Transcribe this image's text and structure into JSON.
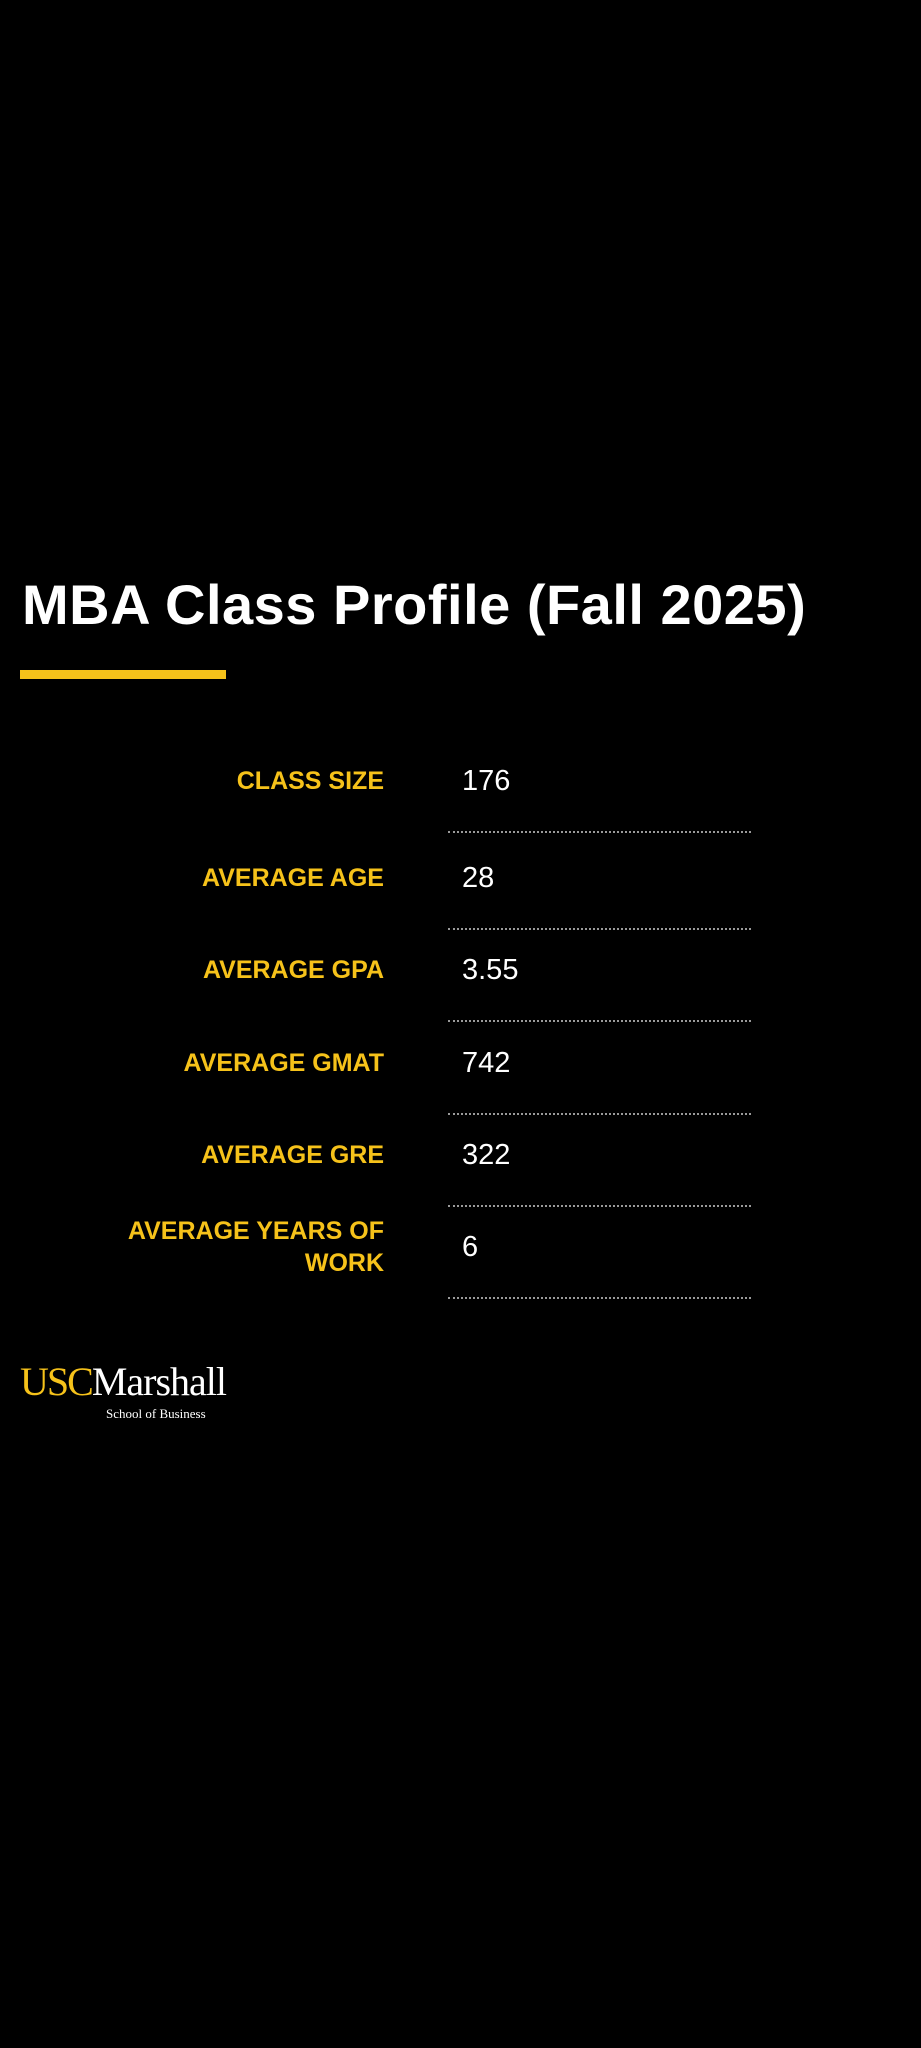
{
  "title": "MBA Class Profile (Fall 2025)",
  "table": {
    "rows": [
      {
        "label": "CLASS SIZE",
        "value": 176
      },
      {
        "label": "AVERAGE AGE",
        "value": 28
      },
      {
        "label": "AVERAGE GPA",
        "value": 3.55
      },
      {
        "label": "AVERAGE GMAT",
        "value": 742
      },
      {
        "label": "AVERAGE GRE",
        "value": 322
      },
      {
        "label": "AVERAGE YEARS OF WORK",
        "value": 6
      }
    ]
  },
  "logo": {
    "usc": "USC",
    "name": "Marshall",
    "subtitle": "School of Business"
  }
}
